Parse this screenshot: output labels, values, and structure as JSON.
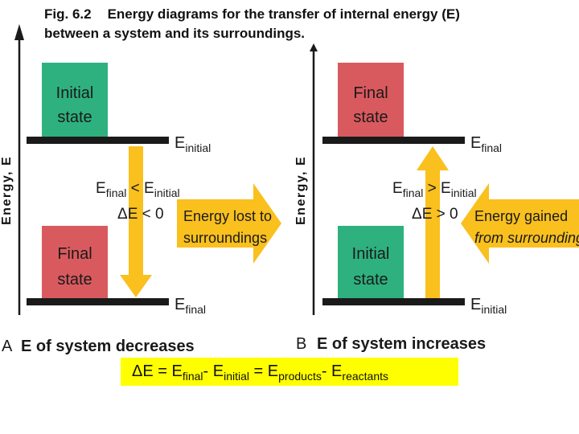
{
  "caption": {
    "figure_number": "Fig. 6.2",
    "text_line1": "Energy diagrams for the transfer of internal energy (E)",
    "text_line2": "between a system and its surroundings."
  },
  "panel_a": {
    "axis_label": "Energy, E",
    "top_box": {
      "line1": "Initial",
      "line2": "state",
      "color": "#2eb17f"
    },
    "bottom_box": {
      "line1": "Final",
      "line2": "state",
      "color": "#d95a5e"
    },
    "upper_level_label": {
      "main": "E",
      "sub": "initial"
    },
    "lower_level_label": {
      "main": "E",
      "sub": "final"
    },
    "condition": {
      "left_main": "E",
      "left_sub": "final",
      "op": " < ",
      "right_main": "E",
      "right_sub": "initial"
    },
    "delta": "ΔE < 0",
    "big_arrow_line1": "Energy lost to",
    "big_arrow_line2": "surroundings",
    "panel_letter": "A",
    "panel_title": "E of system decreases"
  },
  "panel_b": {
    "axis_label": "Energy, E",
    "top_box": {
      "line1": "Final",
      "line2": "state",
      "color": "#d95a5e"
    },
    "bottom_box": {
      "line1": "Initial",
      "line2": "state",
      "color": "#2eb17f"
    },
    "upper_level_label": {
      "main": "E",
      "sub": "final"
    },
    "lower_level_label": {
      "main": "E",
      "sub": "initial"
    },
    "condition": {
      "left_main": "E",
      "left_sub": "final",
      "op": " > ",
      "right_main": "E",
      "right_sub": "initial"
    },
    "delta": "ΔE > 0",
    "big_arrow_line1": "Energy gained",
    "big_arrow_line2": "from surroundings",
    "panel_letter": "B",
    "panel_title": "E of system increases"
  },
  "formula": {
    "delta": "ΔE = E",
    "sub1": "final",
    "minus1": "- E",
    "sub2": "initial",
    "eq": " = E",
    "sub3": "products",
    "minus2": "- E",
    "sub4": "reactants"
  },
  "colors": {
    "arrow_yellow": "#f9c01e",
    "level_line": "#1a1a1a",
    "highlight": "#ffff00"
  }
}
